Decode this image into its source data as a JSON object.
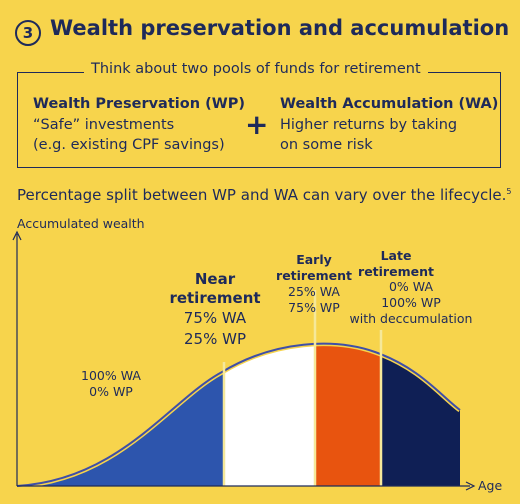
{
  "header": {
    "step_number": "3",
    "title": "Wealth preservation and accumulation"
  },
  "pools": {
    "caption": "Think about two pools of funds for retirement",
    "wp": {
      "title": "Wealth Preservation (WP)",
      "line1": "“Safe” investments",
      "line2": "(e.g. existing CPF savings)"
    },
    "plus": "+",
    "wa": {
      "title": "Wealth Accumulation (WA)",
      "line1": "Higher returns by taking",
      "line2": "on some risk"
    }
  },
  "split_text": "Percentage split between WP and WA can vary over the lifecycle.",
  "split_footnote": "5",
  "chart": {
    "y_axis_label": "Accumulated wealth",
    "x_axis_label": "Age",
    "accumulation": {
      "line1": "100% WA",
      "line2": "0% WP",
      "color": "#2d55ad"
    },
    "near_retirement": {
      "title_line1": "Near",
      "title_line2": "retirement",
      "line1": "75% WA",
      "line2": "25% WP",
      "color": "#ffffff"
    },
    "early_retirement": {
      "title_line1": "Early",
      "title_line2": "retirement",
      "line1": "25% WA",
      "line2": "75% WP",
      "color": "#e8540f"
    },
    "late_retirement": {
      "title_line1": "Late",
      "title_line2": "retirement",
      "line1": "0% WA",
      "line2": "100% WP",
      "line3": "with deccumulation",
      "color": "#0f1f55"
    }
  },
  "colors": {
    "background": "#f7d44c",
    "navy": "#1e2a5a",
    "curve_outline": "#3f4fa8",
    "divider": "#f5e89a"
  }
}
